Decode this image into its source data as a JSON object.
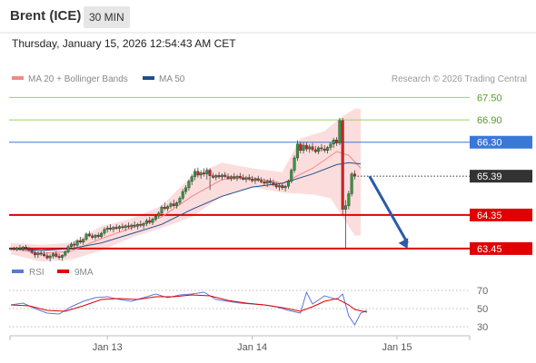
{
  "header": {
    "title": "Brent (ICE)",
    "interval": "30 MIN"
  },
  "datetime": "Thursday, January 15, 2026 12:54:43 AM CET",
  "legend": {
    "items": [
      {
        "name": "MA 20 + Bollinger Bands",
        "color": "#f08a8a"
      },
      {
        "name": "MA 50",
        "color": "#1f4e8c"
      }
    ],
    "copyright": "Research © 2026 Trading Central"
  },
  "chart_data": {
    "type": "candlestick",
    "ylim": [
      63.18,
      67.68
    ],
    "levels": [
      {
        "value": 67.5,
        "label": "67.50",
        "kind": "resistance-minor",
        "color": "#9bd06b"
      },
      {
        "value": 66.9,
        "label": "66.90",
        "kind": "resistance-minor",
        "color": "#9bd06b"
      },
      {
        "value": 66.3,
        "label": "66.30",
        "kind": "pivot",
        "color": "#3a78d8"
      },
      {
        "value": 65.39,
        "label": "65.39",
        "kind": "last-price",
        "color": "#333333"
      },
      {
        "value": 64.35,
        "label": "64.35",
        "kind": "support",
        "color": "#e00000"
      },
      {
        "value": 63.45,
        "label": "63.45",
        "kind": "support",
        "color": "#e00000"
      }
    ],
    "x_ticks": [
      {
        "label": "Jan 13",
        "index": 32
      },
      {
        "label": "Jan 14",
        "index": 80
      },
      {
        "label": "Jan 15",
        "index": 128
      }
    ],
    "candles": [
      [
        63.43,
        63.48,
        63.4,
        63.45
      ],
      [
        63.45,
        63.5,
        63.4,
        63.42
      ],
      [
        63.42,
        63.5,
        63.38,
        63.47
      ],
      [
        63.47,
        63.55,
        63.4,
        63.44
      ],
      [
        63.44,
        63.52,
        63.38,
        63.49
      ],
      [
        63.49,
        63.55,
        63.42,
        63.46
      ],
      [
        63.46,
        63.5,
        63.37,
        63.4
      ],
      [
        63.4,
        63.46,
        63.3,
        63.34
      ],
      [
        63.34,
        63.4,
        63.2,
        63.28
      ],
      [
        63.28,
        63.37,
        63.2,
        63.33
      ],
      [
        63.33,
        63.4,
        63.25,
        63.3
      ],
      [
        63.3,
        63.38,
        63.22,
        63.26
      ],
      [
        63.26,
        63.34,
        63.15,
        63.2
      ],
      [
        63.2,
        63.3,
        63.1,
        63.25
      ],
      [
        63.25,
        63.35,
        63.18,
        63.31
      ],
      [
        63.31,
        63.38,
        63.2,
        63.24
      ],
      [
        63.24,
        63.32,
        63.15,
        63.21
      ],
      [
        63.21,
        63.3,
        63.12,
        63.27
      ],
      [
        63.27,
        63.4,
        63.22,
        63.36
      ],
      [
        63.36,
        63.55,
        63.32,
        63.5
      ],
      [
        63.5,
        63.62,
        63.44,
        63.57
      ],
      [
        63.57,
        63.65,
        63.48,
        63.54
      ],
      [
        63.54,
        63.7,
        63.5,
        63.66
      ],
      [
        63.66,
        63.76,
        63.58,
        63.62
      ],
      [
        63.62,
        63.72,
        63.55,
        63.7
      ],
      [
        63.7,
        63.88,
        63.65,
        63.84
      ],
      [
        63.84,
        63.92,
        63.76,
        63.79
      ],
      [
        63.79,
        63.86,
        63.7,
        63.75
      ],
      [
        63.75,
        63.84,
        63.68,
        63.81
      ],
      [
        63.81,
        63.88,
        63.72,
        63.77
      ],
      [
        63.77,
        63.9,
        63.72,
        63.86
      ],
      [
        63.86,
        64.02,
        63.8,
        63.96
      ],
      [
        63.96,
        64.06,
        63.88,
        64.0
      ],
      [
        64.0,
        64.1,
        63.92,
        63.97
      ],
      [
        63.97,
        64.05,
        63.88,
        64.02
      ],
      [
        64.02,
        64.1,
        63.95,
        63.99
      ],
      [
        63.99,
        64.08,
        63.9,
        64.04
      ],
      [
        64.04,
        64.12,
        63.96,
        64.01
      ],
      [
        64.01,
        64.1,
        63.92,
        64.06
      ],
      [
        64.06,
        64.15,
        63.98,
        64.03
      ],
      [
        64.03,
        64.12,
        63.95,
        64.08
      ],
      [
        64.08,
        64.18,
        64.0,
        64.05
      ],
      [
        64.05,
        64.14,
        63.96,
        64.1
      ],
      [
        64.1,
        64.2,
        64.02,
        64.07
      ],
      [
        64.07,
        64.16,
        63.98,
        64.12
      ],
      [
        64.12,
        64.25,
        64.05,
        64.2
      ],
      [
        64.2,
        64.3,
        64.1,
        64.15
      ],
      [
        64.15,
        64.28,
        64.08,
        64.24
      ],
      [
        64.24,
        64.36,
        64.18,
        64.32
      ],
      [
        64.32,
        64.45,
        64.26,
        64.4
      ],
      [
        64.4,
        64.62,
        64.35,
        64.56
      ],
      [
        64.56,
        64.68,
        64.48,
        64.52
      ],
      [
        64.52,
        64.62,
        64.45,
        64.58
      ],
      [
        64.58,
        64.7,
        64.52,
        64.65
      ],
      [
        64.65,
        64.76,
        64.55,
        64.6
      ],
      [
        64.6,
        64.72,
        64.52,
        64.68
      ],
      [
        64.68,
        64.85,
        64.62,
        64.8
      ],
      [
        64.8,
        65.05,
        64.75,
        64.98
      ],
      [
        64.98,
        65.15,
        64.9,
        65.08
      ],
      [
        65.08,
        65.3,
        65.0,
        65.25
      ],
      [
        65.25,
        65.45,
        65.15,
        65.38
      ],
      [
        65.38,
        65.6,
        65.28,
        65.52
      ],
      [
        65.52,
        65.62,
        65.35,
        65.42
      ],
      [
        65.42,
        65.55,
        65.32,
        65.48
      ],
      [
        65.48,
        65.6,
        65.38,
        65.45
      ],
      [
        65.45,
        65.62,
        65.3,
        65.55
      ],
      [
        65.55,
        65.6,
        65.02,
        65.4
      ],
      [
        65.4,
        65.48,
        65.32,
        65.36
      ],
      [
        65.36,
        65.45,
        65.28,
        65.41
      ],
      [
        65.41,
        65.5,
        65.32,
        65.37
      ],
      [
        65.37,
        65.46,
        65.28,
        65.42
      ],
      [
        65.42,
        65.5,
        65.34,
        65.38
      ],
      [
        65.38,
        65.46,
        65.3,
        65.33
      ],
      [
        65.33,
        65.42,
        65.26,
        65.38
      ],
      [
        65.38,
        65.47,
        65.3,
        65.34
      ],
      [
        65.34,
        65.43,
        65.26,
        65.39
      ],
      [
        65.39,
        65.48,
        65.3,
        65.35
      ],
      [
        65.35,
        65.44,
        65.28,
        65.3
      ],
      [
        65.3,
        65.4,
        65.22,
        65.35
      ],
      [
        65.35,
        65.44,
        65.27,
        65.31
      ],
      [
        65.31,
        65.4,
        65.22,
        65.27
      ],
      [
        65.27,
        65.36,
        65.18,
        65.32
      ],
      [
        65.32,
        65.4,
        65.24,
        65.28
      ],
      [
        65.28,
        65.36,
        65.2,
        65.24
      ],
      [
        65.24,
        65.32,
        65.15,
        65.2
      ],
      [
        65.2,
        65.3,
        65.1,
        65.26
      ],
      [
        65.26,
        65.34,
        65.16,
        65.22
      ],
      [
        65.22,
        65.3,
        65.12,
        65.16
      ],
      [
        65.16,
        65.24,
        65.05,
        65.1
      ],
      [
        65.1,
        65.2,
        65.0,
        65.14
      ],
      [
        65.14,
        65.2,
        65.02,
        65.08
      ],
      [
        65.08,
        65.16,
        64.98,
        65.12
      ],
      [
        65.12,
        65.3,
        65.05,
        65.25
      ],
      [
        65.25,
        65.6,
        65.2,
        65.55
      ],
      [
        65.55,
        65.95,
        65.48,
        65.88
      ],
      [
        65.88,
        66.35,
        65.8,
        66.25
      ],
      [
        66.25,
        66.32,
        66.0,
        66.08
      ],
      [
        66.08,
        66.3,
        66.0,
        66.22
      ],
      [
        66.22,
        66.3,
        66.05,
        66.12
      ],
      [
        66.12,
        66.25,
        66.02,
        66.18
      ],
      [
        66.18,
        66.28,
        66.05,
        66.1
      ],
      [
        66.1,
        66.2,
        66.0,
        66.05
      ],
      [
        66.05,
        66.2,
        65.98,
        66.15
      ],
      [
        66.15,
        66.25,
        66.05,
        66.12
      ],
      [
        66.12,
        66.22,
        66.02,
        66.08
      ],
      [
        66.08,
        66.2,
        66.0,
        66.16
      ],
      [
        66.16,
        66.3,
        66.08,
        66.25
      ],
      [
        66.25,
        66.42,
        66.15,
        66.36
      ],
      [
        66.36,
        66.44,
        66.2,
        66.28
      ],
      [
        66.28,
        66.95,
        66.22,
        66.88
      ],
      [
        66.88,
        66.95,
        64.35,
        64.5
      ],
      [
        64.5,
        64.75,
        63.45,
        64.6
      ],
      [
        64.6,
        65.0,
        64.5,
        64.92
      ],
      [
        64.92,
        65.5,
        64.85,
        65.45
      ],
      [
        65.45,
        65.55,
        65.3,
        65.39
      ]
    ],
    "ma20": [
      [
        0,
        63.45
      ],
      [
        10,
        63.32
      ],
      [
        20,
        63.38
      ],
      [
        30,
        63.72
      ],
      [
        40,
        64.0
      ],
      [
        50,
        64.3
      ],
      [
        60,
        64.85
      ],
      [
        70,
        65.3
      ],
      [
        80,
        65.35
      ],
      [
        90,
        65.2
      ],
      [
        100,
        65.6
      ],
      [
        108,
        66.05
      ],
      [
        112,
        65.95
      ],
      [
        116,
        65.6
      ]
    ],
    "ma50": [
      [
        0,
        63.45
      ],
      [
        10,
        63.4
      ],
      [
        20,
        63.45
      ],
      [
        30,
        63.6
      ],
      [
        40,
        63.85
      ],
      [
        50,
        64.1
      ],
      [
        60,
        64.5
      ],
      [
        70,
        64.85
      ],
      [
        80,
        65.1
      ],
      [
        90,
        65.2
      ],
      [
        100,
        65.45
      ],
      [
        108,
        65.7
      ],
      [
        112,
        65.75
      ],
      [
        116,
        65.72
      ]
    ],
    "bb_upper": [
      [
        0,
        63.6
      ],
      [
        10,
        63.55
      ],
      [
        20,
        63.6
      ],
      [
        30,
        64.05
      ],
      [
        40,
        64.25
      ],
      [
        50,
        64.6
      ],
      [
        60,
        65.4
      ],
      [
        70,
        65.75
      ],
      [
        80,
        65.6
      ],
      [
        90,
        65.5
      ],
      [
        96,
        66.4
      ],
      [
        104,
        66.6
      ],
      [
        110,
        67.0
      ],
      [
        114,
        67.2
      ],
      [
        116,
        67.2
      ]
    ],
    "bb_lower": [
      [
        0,
        63.3
      ],
      [
        10,
        63.1
      ],
      [
        20,
        63.15
      ],
      [
        30,
        63.4
      ],
      [
        40,
        63.75
      ],
      [
        50,
        64.0
      ],
      [
        60,
        64.3
      ],
      [
        70,
        64.85
      ],
      [
        80,
        65.1
      ],
      [
        90,
        64.95
      ],
      [
        100,
        64.9
      ],
      [
        106,
        64.8
      ],
      [
        110,
        64.3
      ],
      [
        114,
        63.8
      ],
      [
        116,
        63.8
      ]
    ],
    "projection": {
      "from": [
        118,
        65.39
      ],
      "to": [
        130,
        63.45
      ]
    },
    "rsi": {
      "legend": [
        {
          "name": "RSI",
          "color": "#5a78d8"
        },
        {
          "name": "9MA",
          "color": "#e00000"
        }
      ],
      "ticks": [
        70,
        50,
        30
      ],
      "ylim": [
        22,
        78
      ],
      "rsi": [
        [
          0,
          54
        ],
        [
          4,
          56
        ],
        [
          8,
          50
        ],
        [
          12,
          45
        ],
        [
          16,
          44
        ],
        [
          20,
          52
        ],
        [
          24,
          58
        ],
        [
          28,
          62
        ],
        [
          32,
          63
        ],
        [
          36,
          60
        ],
        [
          40,
          58
        ],
        [
          44,
          62
        ],
        [
          48,
          66
        ],
        [
          52,
          62
        ],
        [
          56,
          65
        ],
        [
          60,
          66
        ],
        [
          64,
          68
        ],
        [
          68,
          60
        ],
        [
          72,
          58
        ],
        [
          76,
          56
        ],
        [
          80,
          55
        ],
        [
          84,
          54
        ],
        [
          88,
          52
        ],
        [
          92,
          48
        ],
        [
          96,
          45
        ],
        [
          98,
          68
        ],
        [
          100,
          55
        ],
        [
          104,
          64
        ],
        [
          108,
          60
        ],
        [
          110,
          66
        ],
        [
          112,
          42
        ],
        [
          114,
          32
        ],
        [
          116,
          45
        ],
        [
          118,
          48
        ]
      ],
      "ma9": [
        [
          0,
          54
        ],
        [
          6,
          53
        ],
        [
          12,
          48
        ],
        [
          18,
          47
        ],
        [
          24,
          53
        ],
        [
          30,
          60
        ],
        [
          36,
          61
        ],
        [
          42,
          60
        ],
        [
          48,
          63
        ],
        [
          54,
          63
        ],
        [
          60,
          65
        ],
        [
          66,
          64
        ],
        [
          72,
          59
        ],
        [
          78,
          56
        ],
        [
          84,
          54
        ],
        [
          90,
          51
        ],
        [
          96,
          47
        ],
        [
          100,
          52
        ],
        [
          104,
          58
        ],
        [
          108,
          61
        ],
        [
          112,
          54
        ],
        [
          114,
          49
        ],
        [
          118,
          46
        ]
      ]
    }
  }
}
